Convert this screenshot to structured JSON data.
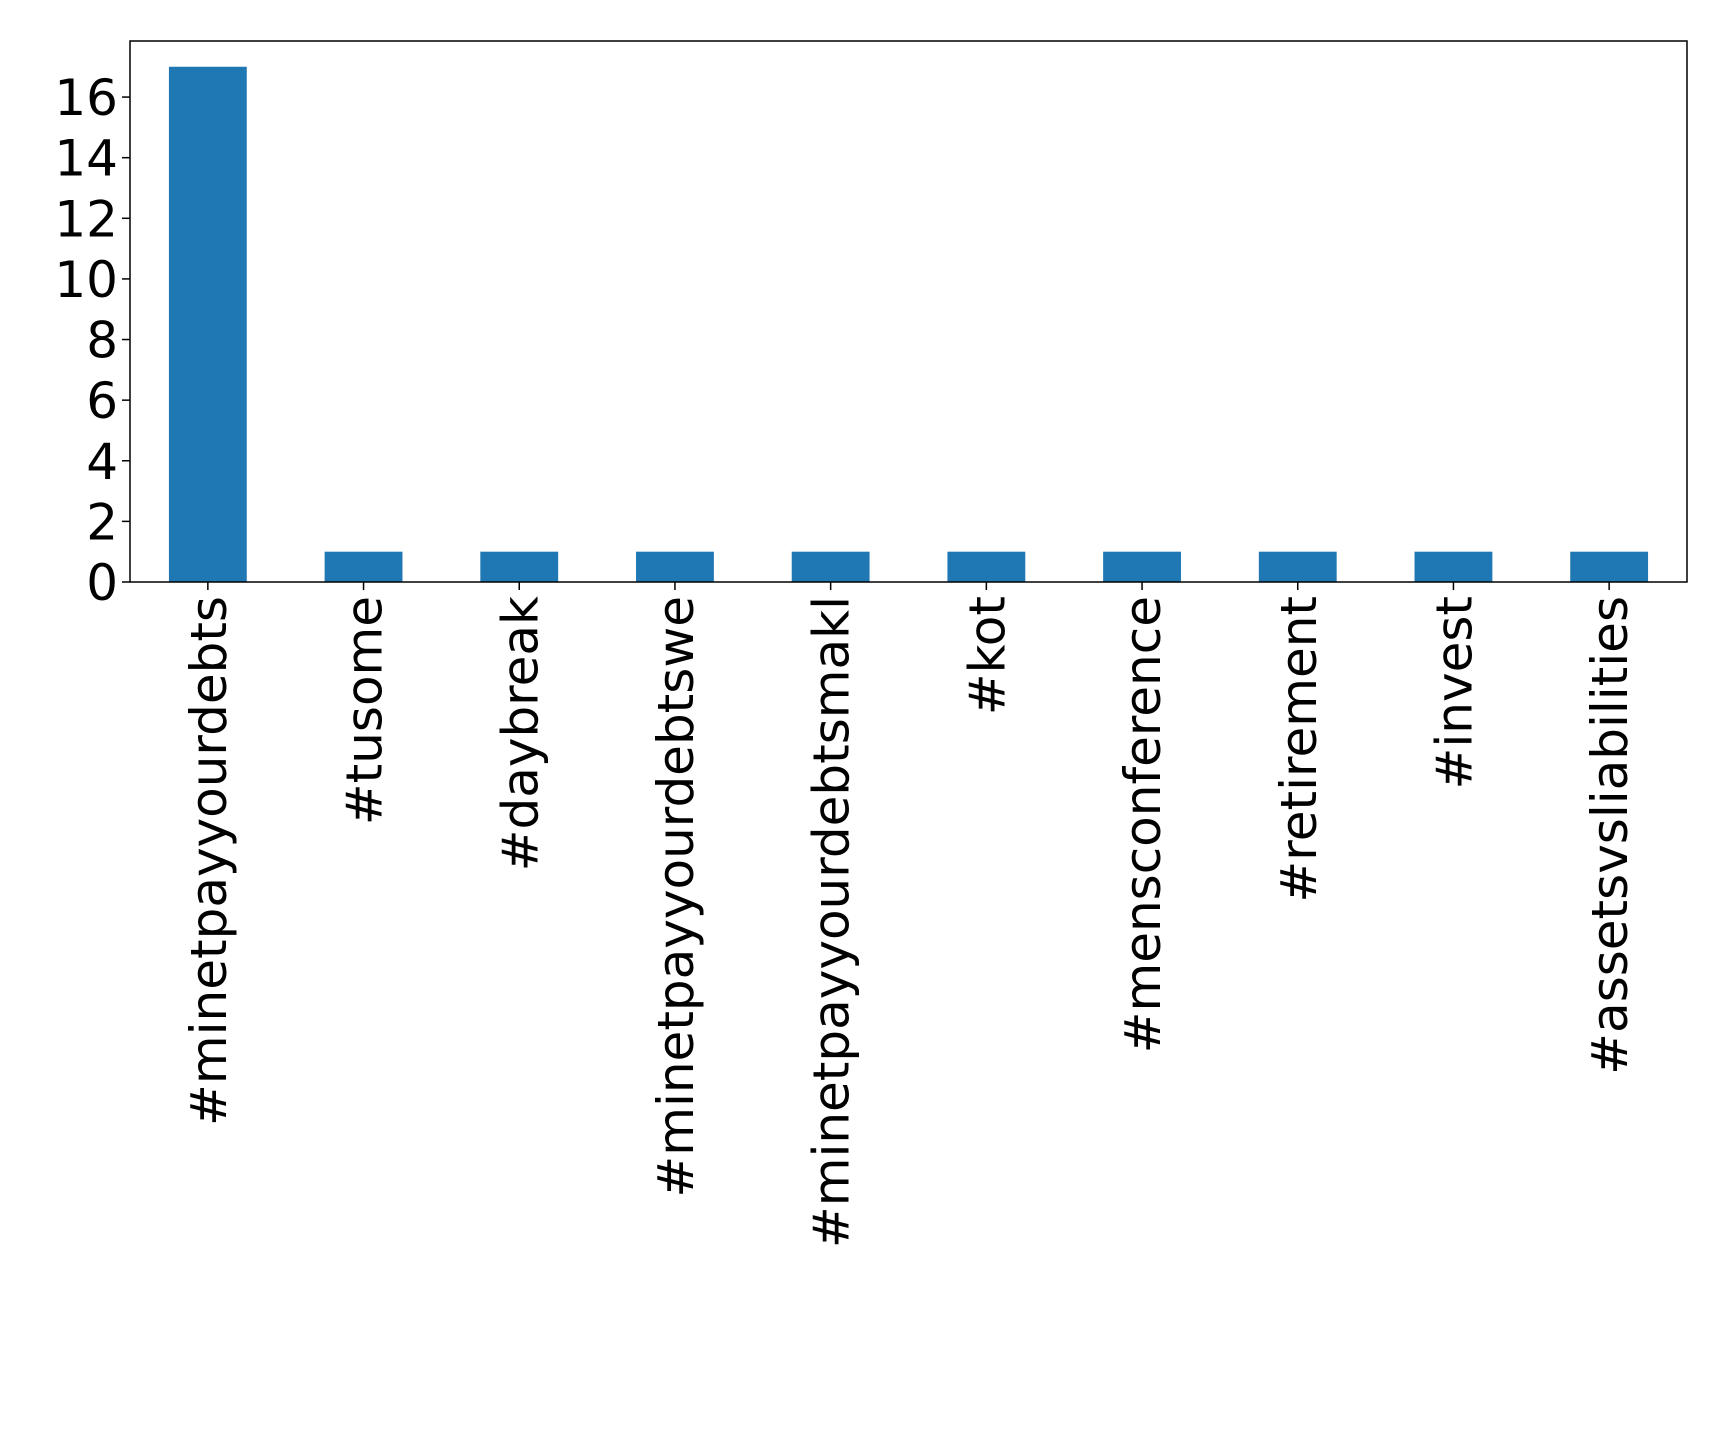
{
  "chart_data": {
    "type": "bar",
    "categories": [
      "#minetpayyourdebts",
      "#tusome",
      "#daybreak",
      "#minetpayyourdebtswe",
      "#minetpayyourdebtsmakl",
      "#kot",
      "#mensconference",
      "#retirement",
      "#invest",
      "#assetsvsliabilities"
    ],
    "values": [
      17,
      1,
      1,
      1,
      1,
      1,
      1,
      1,
      1,
      1
    ],
    "color": "#1f77b4",
    "ylim": [
      0,
      17.85
    ],
    "yticks": [
      0,
      2,
      4,
      6,
      8,
      10,
      12,
      14,
      16
    ],
    "grid": false
  }
}
